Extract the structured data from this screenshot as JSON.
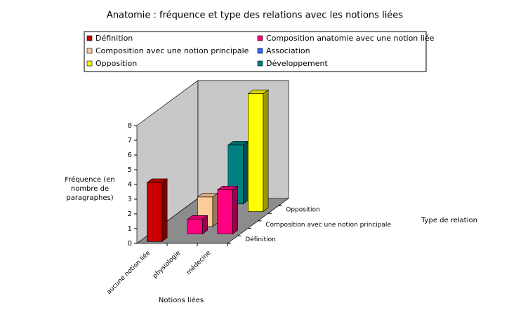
{
  "chart_data": {
    "type": "bar3d",
    "title": "Anatomie : fréquence et type des relations avec les notions liées",
    "y_label": "Fréquence (en nombre de paragraphes)",
    "x_label": "Notions liées",
    "z_label": "Type de relation",
    "categories": [
      "aucune notion liée",
      "physiologie",
      "médecine"
    ],
    "series": [
      {
        "name": "Définition",
        "color": "#cc0000",
        "values": [
          4,
          null,
          null
        ]
      },
      {
        "name": "Composition anatomie avec une notion liée",
        "color": "#ff0080",
        "values": [
          null,
          1,
          3
        ]
      },
      {
        "name": "Composition avec une notion principale",
        "color": "#ffcc99",
        "values": [
          null,
          2,
          null
        ]
      },
      {
        "name": "Association",
        "color": "#3366ff",
        "values": [
          null,
          null,
          null
        ]
      },
      {
        "name": "Opposition",
        "color": "#ffff00",
        "values": [
          null,
          null,
          8
        ]
      },
      {
        "name": "Développement",
        "color": "#008080",
        "values": [
          null,
          4,
          null
        ]
      }
    ],
    "ylim": [
      0,
      8
    ],
    "yticks": [
      0,
      1,
      2,
      3,
      4,
      5,
      6,
      7,
      8
    ]
  }
}
